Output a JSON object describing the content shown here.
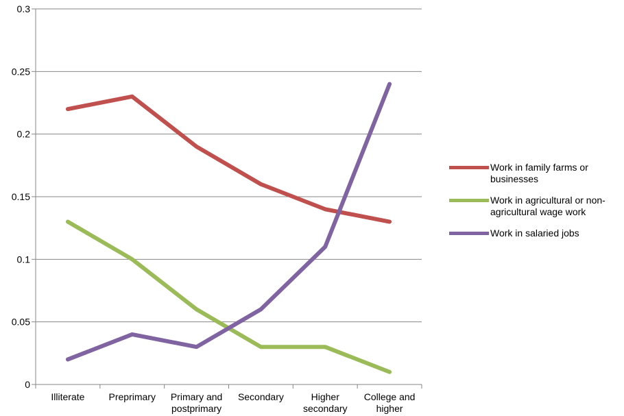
{
  "chart_data": {
    "type": "line",
    "categories": [
      [
        "Illiterate"
      ],
      [
        "Preprimary"
      ],
      [
        "Primary and",
        "postprimary"
      ],
      [
        "Secondary"
      ],
      [
        "Higher",
        "secondary"
      ],
      [
        "College and",
        "higher"
      ]
    ],
    "y_ticks": [
      "0",
      "0.05",
      "0.1",
      "0.15",
      "0.2",
      "0.25",
      "0.3"
    ],
    "ylim": [
      0,
      0.3
    ],
    "grid": true,
    "legend_position": "right",
    "series": [
      {
        "name": "Work in family farms or businesses",
        "label_lines": [
          "Work in family farms or",
          "businesses"
        ],
        "color": "#c0504d",
        "values": [
          0.22,
          0.23,
          0.19,
          0.16,
          0.14,
          0.13
        ]
      },
      {
        "name": "Work in agricultural or non-agricultural wage work",
        "label_lines": [
          "Work in agricultural or non-",
          "agricultural wage work"
        ],
        "color": "#9bbb59",
        "values": [
          0.13,
          0.1,
          0.06,
          0.03,
          0.03,
          0.01
        ]
      },
      {
        "name": "Work in salaried jobs",
        "label_lines": [
          "Work in salaried jobs"
        ],
        "color": "#8064a2",
        "values": [
          0.02,
          0.04,
          0.03,
          0.06,
          0.11,
          0.24
        ]
      }
    ]
  }
}
